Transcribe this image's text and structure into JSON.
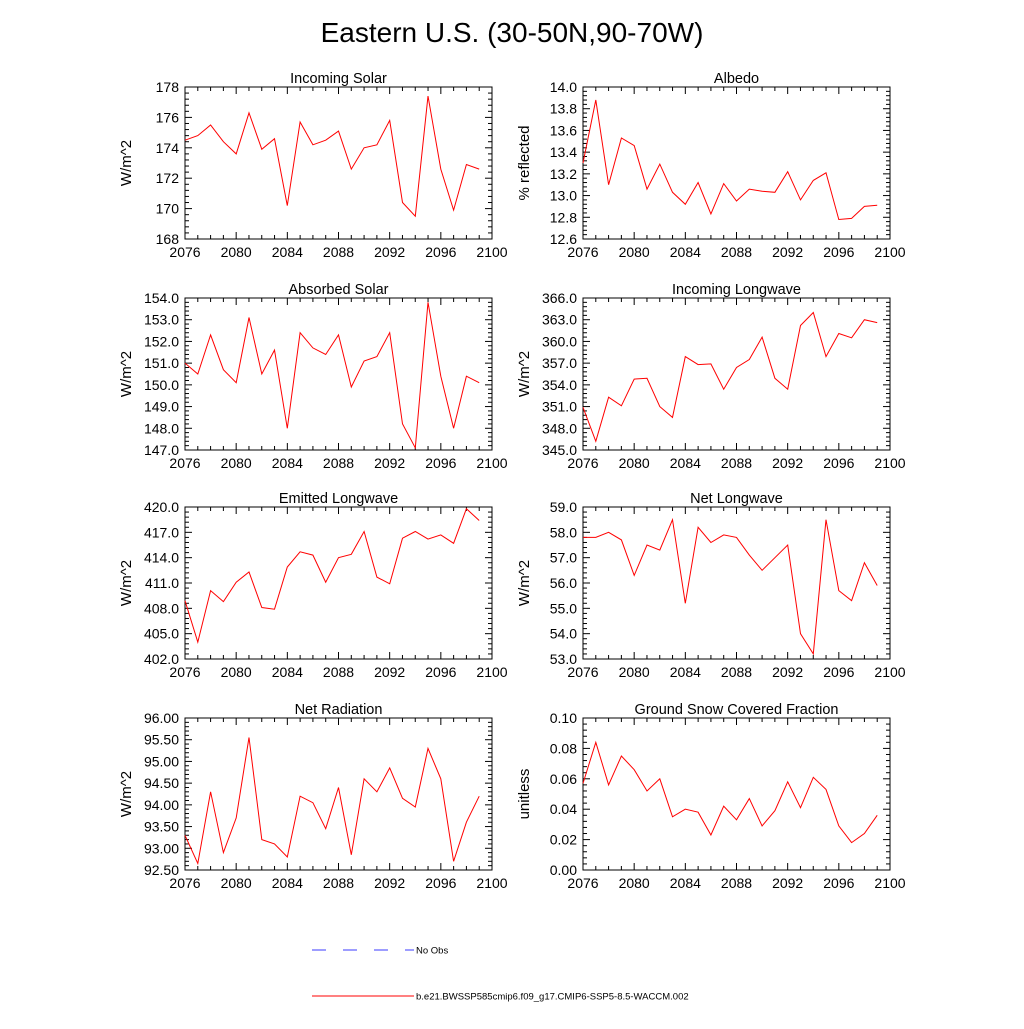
{
  "figure_title": "Eastern U.S. (30-50N,90-70W)",
  "colors": {
    "series": "#ff0000",
    "obs": "#3b3bff",
    "axis": "#000000"
  },
  "legend": [
    {
      "label": "No Obs",
      "style": "dashed",
      "color": "#3b3bff"
    },
    {
      "label": "b.e21.BWSSP585cmip6.f09_g17.CMIP6-SSP5-8.5-WACCM.002",
      "style": "solid",
      "color": "#ff0000"
    }
  ],
  "chart_data": [
    {
      "type": "line",
      "title": "Incoming Solar",
      "xlabel": "",
      "ylabel": "W/m^2",
      "xlim": [
        2076,
        2100
      ],
      "ylim": [
        168,
        178
      ],
      "xticks": [
        "2076",
        "2080",
        "2084",
        "2088",
        "2092",
        "2096",
        "2100"
      ],
      "yticks": [
        "168",
        "170",
        "172",
        "174",
        "176",
        "178"
      ],
      "x": [
        2076,
        2077,
        2078,
        2079,
        2080,
        2081,
        2082,
        2083,
        2084,
        2085,
        2086,
        2087,
        2088,
        2089,
        2090,
        2091,
        2092,
        2093,
        2094,
        2095,
        2096,
        2097,
        2098,
        2099
      ],
      "series": [
        {
          "name": "b.e21.BWSSP585cmip6.f09_g17.CMIP6-SSP5-8.5-WACCM.002",
          "values": [
            174.5,
            174.8,
            175.5,
            174.4,
            173.6,
            176.3,
            173.9,
            174.6,
            170.2,
            175.7,
            174.2,
            174.5,
            175.1,
            172.6,
            174.0,
            174.2,
            175.8,
            170.4,
            169.5,
            177.4,
            172.6,
            169.9,
            172.9,
            172.6
          ]
        }
      ]
    },
    {
      "type": "line",
      "title": "Albedo",
      "xlabel": "",
      "ylabel": "% reflected",
      "xlim": [
        2076,
        2100
      ],
      "ylim": [
        12.6,
        14.0
      ],
      "xticks": [
        "2076",
        "2080",
        "2084",
        "2088",
        "2092",
        "2096",
        "2100"
      ],
      "yticks": [
        "12.6",
        "12.8",
        "13.0",
        "13.2",
        "13.4",
        "13.6",
        "13.8",
        "14.0"
      ],
      "x": [
        2076,
        2077,
        2078,
        2079,
        2080,
        2081,
        2082,
        2083,
        2084,
        2085,
        2086,
        2087,
        2088,
        2089,
        2090,
        2091,
        2092,
        2093,
        2094,
        2095,
        2096,
        2097,
        2098,
        2099
      ],
      "series": [
        {
          "name": "b.e21.BWSSP585cmip6.f09_g17.CMIP6-SSP5-8.5-WACCM.002",
          "values": [
            13.3,
            13.88,
            13.1,
            13.53,
            13.46,
            13.06,
            13.29,
            13.03,
            12.92,
            13.12,
            12.83,
            13.11,
            12.95,
            13.06,
            13.04,
            13.03,
            13.22,
            12.96,
            13.14,
            13.21,
            12.78,
            12.79,
            12.9,
            12.91
          ]
        }
      ]
    },
    {
      "type": "line",
      "title": "Absorbed Solar",
      "xlabel": "",
      "ylabel": "W/m^2",
      "xlim": [
        2076,
        2100
      ],
      "ylim": [
        147.0,
        154.0
      ],
      "xticks": [
        "2076",
        "2080",
        "2084",
        "2088",
        "2092",
        "2096",
        "2100"
      ],
      "yticks": [
        "147.0",
        "148.0",
        "149.0",
        "150.0",
        "151.0",
        "152.0",
        "153.0",
        "154.0"
      ],
      "x": [
        2076,
        2077,
        2078,
        2079,
        2080,
        2081,
        2082,
        2083,
        2084,
        2085,
        2086,
        2087,
        2088,
        2089,
        2090,
        2091,
        2092,
        2093,
        2094,
        2095,
        2096,
        2097,
        2098,
        2099
      ],
      "series": [
        {
          "name": "b.e21.BWSSP585cmip6.f09_g17.CMIP6-SSP5-8.5-WACCM.002",
          "values": [
            151.0,
            150.5,
            152.3,
            150.7,
            150.1,
            153.1,
            150.5,
            151.6,
            148.0,
            152.4,
            151.7,
            151.4,
            152.3,
            149.9,
            151.1,
            151.3,
            152.4,
            148.2,
            147.1,
            153.8,
            150.4,
            148.0,
            150.4,
            150.1
          ]
        }
      ]
    },
    {
      "type": "line",
      "title": "Incoming Longwave",
      "xlabel": "",
      "ylabel": "W/m^2",
      "xlim": [
        2076,
        2100
      ],
      "ylim": [
        345.0,
        366.0
      ],
      "xticks": [
        "2076",
        "2080",
        "2084",
        "2088",
        "2092",
        "2096",
        "2100"
      ],
      "yticks": [
        "345.0",
        "348.0",
        "351.0",
        "354.0",
        "357.0",
        "360.0",
        "363.0",
        "366.0"
      ],
      "x": [
        2076,
        2077,
        2078,
        2079,
        2080,
        2081,
        2082,
        2083,
        2084,
        2085,
        2086,
        2087,
        2088,
        2089,
        2090,
        2091,
        2092,
        2093,
        2094,
        2095,
        2096,
        2097,
        2098,
        2099
      ],
      "series": [
        {
          "name": "b.e21.BWSSP585cmip6.f09_g17.CMIP6-SSP5-8.5-WACCM.002",
          "values": [
            350.9,
            346.2,
            352.3,
            351.1,
            354.8,
            354.9,
            351.0,
            349.5,
            357.9,
            356.8,
            356.9,
            353.4,
            356.4,
            357.5,
            360.6,
            354.9,
            353.4,
            362.2,
            364.0,
            357.9,
            361.1,
            360.5,
            363.0,
            362.6
          ]
        }
      ]
    },
    {
      "type": "line",
      "title": "Emitted Longwave",
      "xlabel": "",
      "ylabel": "W/m^2",
      "xlim": [
        2076,
        2100
      ],
      "ylim": [
        402.0,
        420.0
      ],
      "xticks": [
        "2076",
        "2080",
        "2084",
        "2088",
        "2092",
        "2096",
        "2100"
      ],
      "yticks": [
        "402.0",
        "405.0",
        "408.0",
        "411.0",
        "414.0",
        "417.0",
        "420.0"
      ],
      "x": [
        2076,
        2077,
        2078,
        2079,
        2080,
        2081,
        2082,
        2083,
        2084,
        2085,
        2086,
        2087,
        2088,
        2089,
        2090,
        2091,
        2092,
        2093,
        2094,
        2095,
        2096,
        2097,
        2098,
        2099
      ],
      "series": [
        {
          "name": "b.e21.BWSSP585cmip6.f09_g17.CMIP6-SSP5-8.5-WACCM.002",
          "values": [
            408.9,
            404.0,
            410.1,
            408.8,
            411.1,
            412.3,
            408.1,
            407.9,
            412.9,
            414.7,
            414.3,
            411.1,
            414.0,
            414.4,
            417.1,
            411.7,
            410.9,
            416.3,
            417.1,
            416.2,
            416.7,
            415.7,
            419.8,
            418.4
          ]
        }
      ]
    },
    {
      "type": "line",
      "title": "Net Longwave",
      "xlabel": "",
      "ylabel": "W/m^2",
      "xlim": [
        2076,
        2100
      ],
      "ylim": [
        53.0,
        59.0
      ],
      "xticks": [
        "2076",
        "2080",
        "2084",
        "2088",
        "2092",
        "2096",
        "2100"
      ],
      "yticks": [
        "53.0",
        "54.0",
        "55.0",
        "56.0",
        "57.0",
        "58.0",
        "59.0"
      ],
      "x": [
        2076,
        2077,
        2078,
        2079,
        2080,
        2081,
        2082,
        2083,
        2084,
        2085,
        2086,
        2087,
        2088,
        2089,
        2090,
        2091,
        2092,
        2093,
        2094,
        2095,
        2096,
        2097,
        2098,
        2099
      ],
      "series": [
        {
          "name": "b.e21.BWSSP585cmip6.f09_g17.CMIP6-SSP5-8.5-WACCM.002",
          "values": [
            57.8,
            57.8,
            58.0,
            57.7,
            56.3,
            57.5,
            57.3,
            58.5,
            55.2,
            58.2,
            57.6,
            57.9,
            57.8,
            57.1,
            56.5,
            57.0,
            57.5,
            54.0,
            53.2,
            58.5,
            55.7,
            55.3,
            56.8,
            55.9
          ]
        }
      ]
    },
    {
      "type": "line",
      "title": "Net Radiation",
      "xlabel": "",
      "ylabel": "W/m^2",
      "xlim": [
        2076,
        2100
      ],
      "ylim": [
        92.5,
        96.0
      ],
      "xticks": [
        "2076",
        "2080",
        "2084",
        "2088",
        "2092",
        "2096",
        "2100"
      ],
      "yticks": [
        "92.50",
        "93.00",
        "93.50",
        "94.00",
        "94.50",
        "95.00",
        "95.50",
        "96.00"
      ],
      "x": [
        2076,
        2077,
        2078,
        2079,
        2080,
        2081,
        2082,
        2083,
        2084,
        2085,
        2086,
        2087,
        2088,
        2089,
        2090,
        2091,
        2092,
        2093,
        2094,
        2095,
        2096,
        2097,
        2098,
        2099
      ],
      "series": [
        {
          "name": "b.e21.BWSSP585cmip6.f09_g17.CMIP6-SSP5-8.5-WACCM.002",
          "values": [
            93.3,
            92.65,
            94.3,
            92.9,
            93.7,
            95.55,
            93.2,
            93.1,
            92.8,
            94.2,
            94.05,
            93.45,
            94.4,
            92.85,
            94.6,
            94.3,
            94.85,
            94.15,
            93.95,
            95.3,
            94.6,
            92.7,
            93.6,
            94.2
          ]
        }
      ]
    },
    {
      "type": "line",
      "title": "Ground Snow Covered Fraction",
      "xlabel": "",
      "ylabel": "unitless",
      "xlim": [
        2076,
        2100
      ],
      "ylim": [
        0.0,
        0.1
      ],
      "xticks": [
        "2076",
        "2080",
        "2084",
        "2088",
        "2092",
        "2096",
        "2100"
      ],
      "yticks": [
        "0.00",
        "0.02",
        "0.04",
        "0.06",
        "0.08",
        "0.10"
      ],
      "x": [
        2076,
        2077,
        2078,
        2079,
        2080,
        2081,
        2082,
        2083,
        2084,
        2085,
        2086,
        2087,
        2088,
        2089,
        2090,
        2091,
        2092,
        2093,
        2094,
        2095,
        2096,
        2097,
        2098,
        2099
      ],
      "series": [
        {
          "name": "b.e21.BWSSP585cmip6.f09_g17.CMIP6-SSP5-8.5-WACCM.002",
          "values": [
            0.057,
            0.084,
            0.056,
            0.075,
            0.066,
            0.052,
            0.06,
            0.035,
            0.04,
            0.038,
            0.023,
            0.042,
            0.033,
            0.047,
            0.029,
            0.039,
            0.058,
            0.041,
            0.061,
            0.053,
            0.029,
            0.018,
            0.024,
            0.036
          ]
        }
      ]
    }
  ]
}
